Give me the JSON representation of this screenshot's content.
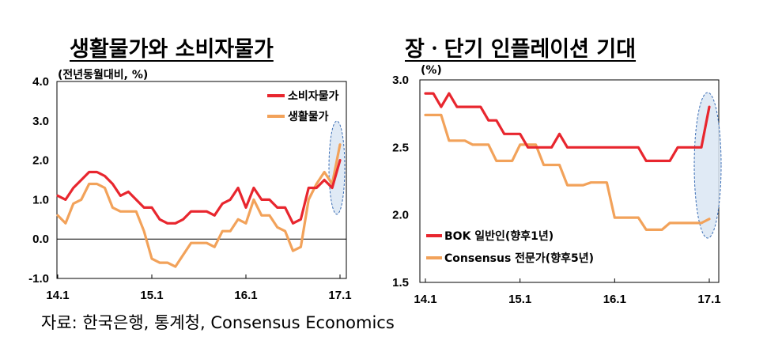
{
  "source": "자료: 한국은행, 통계청, Consensus Economics",
  "colors": {
    "red": "#e8262e",
    "orange": "#f2a25a",
    "ellipse_fill": "#dbe6f3",
    "ellipse_stroke": "#3a6db5"
  },
  "chart_data": [
    {
      "type": "line",
      "title": "생활물가와 소비자물가",
      "unit_label": "(전년동월대비, %)",
      "ylim": [
        -1.0,
        4.0
      ],
      "y_ticks": [
        "4.0",
        "3.0",
        "2.0",
        "1.0",
        "0.0",
        "-1.0"
      ],
      "x_ticks": [
        "14.1",
        "15.1",
        "16.1",
        "17.1"
      ],
      "x_tick_index": [
        0,
        12,
        24,
        36
      ],
      "highlight": "ellipse around the last two months",
      "legend_position": "top-right",
      "series": [
        {
          "name": "소비자물가",
          "color": "red",
          "values": [
            1.1,
            1.0,
            1.3,
            1.5,
            1.7,
            1.7,
            1.6,
            1.4,
            1.1,
            1.2,
            1.0,
            0.8,
            0.8,
            0.5,
            0.4,
            0.4,
            0.5,
            0.7,
            0.7,
            0.7,
            0.6,
            0.9,
            1.0,
            1.3,
            0.8,
            1.3,
            1.0,
            1.0,
            0.8,
            0.8,
            0.4,
            0.5,
            1.3,
            1.3,
            1.5,
            1.3,
            2.0
          ]
        },
        {
          "name": "생활물가",
          "color": "orange",
          "values": [
            0.6,
            0.4,
            0.9,
            1.0,
            1.4,
            1.4,
            1.3,
            0.8,
            0.7,
            0.7,
            0.7,
            0.2,
            -0.5,
            -0.6,
            -0.6,
            -0.7,
            -0.4,
            -0.1,
            -0.1,
            -0.1,
            -0.2,
            0.2,
            0.2,
            0.5,
            0.4,
            1.0,
            0.6,
            0.6,
            0.3,
            0.2,
            -0.3,
            -0.2,
            1.0,
            1.4,
            1.7,
            1.4,
            2.4
          ]
        }
      ]
    },
    {
      "type": "line",
      "title": "장ㆍ단기 인플레이션 기대",
      "unit_label": "(%)",
      "ylim": [
        1.5,
        3.0
      ],
      "y_ticks": [
        "3.0",
        "2.5",
        "2.0",
        "1.5"
      ],
      "x_ticks": [
        "14.1",
        "15.1",
        "16.1",
        "17.1"
      ],
      "x_tick_index": [
        0,
        12,
        24,
        36
      ],
      "highlight": "ellipse around the last two months",
      "legend_position": "bottom-left",
      "series": [
        {
          "name": "BOK 일반인(향후1년)",
          "color": "red",
          "values": [
            2.9,
            2.9,
            2.8,
            2.9,
            2.8,
            2.8,
            2.8,
            2.8,
            2.7,
            2.7,
            2.6,
            2.6,
            2.6,
            2.5,
            2.5,
            2.5,
            2.5,
            2.6,
            2.5,
            2.5,
            2.5,
            2.5,
            2.5,
            2.5,
            2.5,
            2.5,
            2.5,
            2.5,
            2.4,
            2.4,
            2.4,
            2.4,
            2.5,
            2.5,
            2.5,
            2.5,
            2.8
          ]
        },
        {
          "name": "Consensus 전문가(향후5년)",
          "color": "orange",
          "values": [
            2.74,
            2.74,
            2.74,
            2.55,
            2.55,
            2.55,
            2.52,
            2.52,
            2.52,
            2.4,
            2.4,
            2.4,
            2.52,
            2.52,
            2.52,
            2.37,
            2.37,
            2.37,
            2.22,
            2.22,
            2.22,
            2.24,
            2.24,
            2.24,
            1.98,
            1.98,
            1.98,
            1.98,
            1.89,
            1.89,
            1.89,
            1.94,
            1.94,
            1.94,
            1.94,
            1.94,
            1.97
          ]
        }
      ]
    }
  ]
}
